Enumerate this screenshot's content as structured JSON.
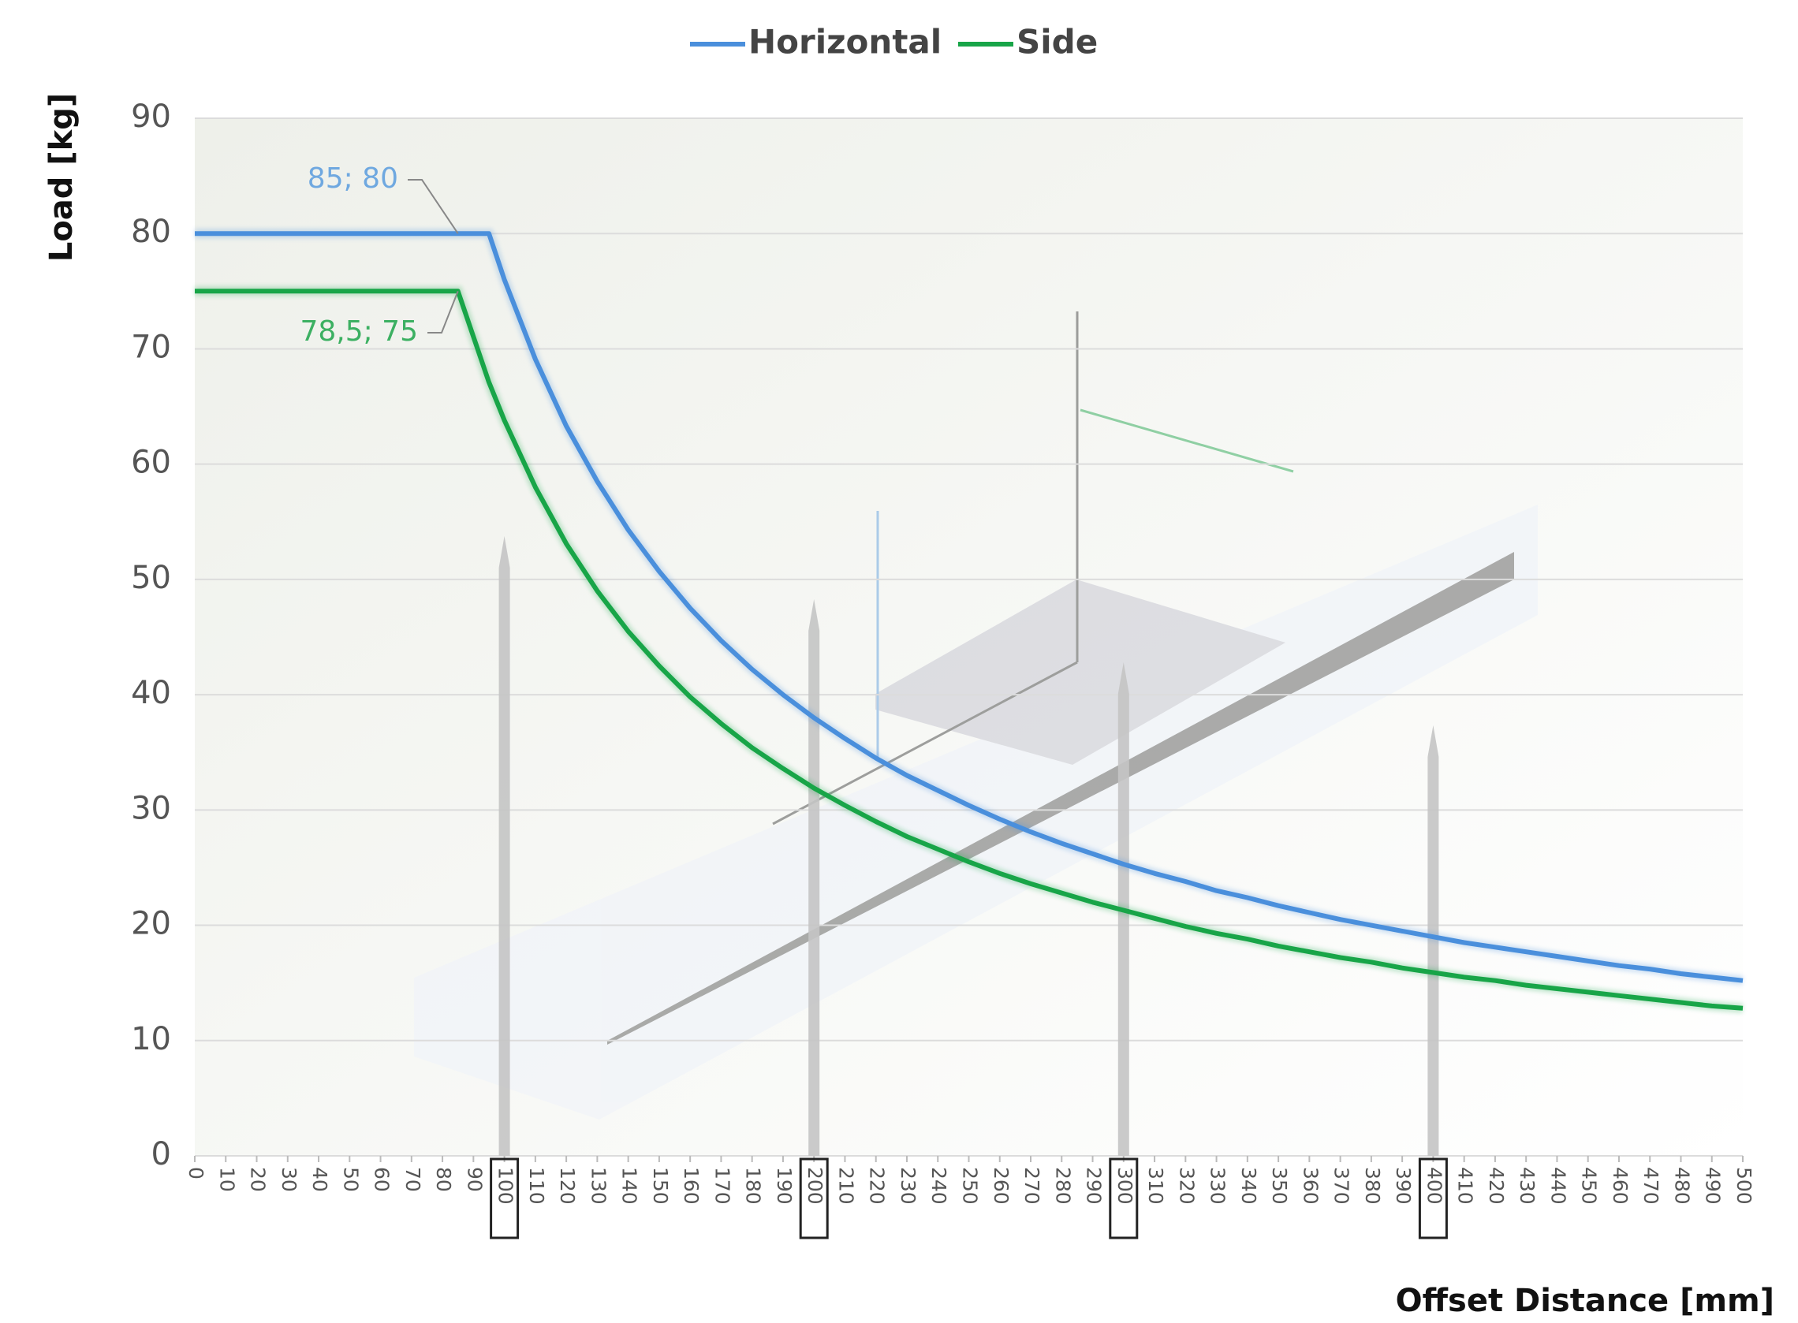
{
  "chart_data": {
    "type": "line",
    "legend": [
      "Horizontal",
      "Side"
    ],
    "y_label": "Load [kg]",
    "x_label": "Offset Distance [mm]",
    "x": [
      0,
      85,
      95,
      100,
      110,
      120,
      130,
      140,
      150,
      160,
      170,
      180,
      190,
      200,
      210,
      220,
      230,
      240,
      250,
      260,
      270,
      280,
      290,
      300,
      310,
      320,
      330,
      340,
      350,
      360,
      370,
      380,
      390,
      400,
      410,
      420,
      430,
      440,
      450,
      460,
      470,
      480,
      490,
      500
    ],
    "series": [
      {
        "name": "Horizontal",
        "color": "#4a8fdc",
        "values": [
          80,
          80,
          80,
          76,
          69.1,
          63.3,
          58.5,
          54.3,
          50.7,
          47.5,
          44.7,
          42.2,
          40,
          38,
          36.2,
          34.5,
          33,
          31.7,
          30.4,
          29.2,
          28.1,
          27.1,
          26.2,
          25.3,
          24.5,
          23.8,
          23,
          22.4,
          21.7,
          21.1,
          20.5,
          20,
          19.5,
          19,
          18.5,
          18.1,
          17.7,
          17.3,
          16.9,
          16.5,
          16.2,
          15.8,
          15.5,
          15.2
        ]
      },
      {
        "name": "Side",
        "color": "#18a548",
        "values": [
          75,
          75,
          67.1,
          63.8,
          58,
          53.1,
          49,
          45.5,
          42.5,
          39.8,
          37.5,
          35.4,
          33.6,
          31.9,
          30.4,
          29,
          27.7,
          26.6,
          25.5,
          24.5,
          23.6,
          22.8,
          22,
          21.3,
          20.6,
          19.9,
          19.3,
          18.8,
          18.2,
          17.7,
          17.2,
          16.8,
          16.3,
          15.9,
          15.5,
          15.2,
          14.8,
          14.5,
          14.2,
          13.9,
          13.6,
          13.3,
          13,
          12.8
        ]
      }
    ],
    "annotations": [
      {
        "text": "85; 80",
        "color": "#6fa8e0"
      },
      {
        "text": "78,5; 75",
        "color": "#3cb062"
      }
    ],
    "xlim": [
      0,
      500
    ],
    "ylim": [
      0,
      90
    ],
    "xticks": [
      0,
      10,
      20,
      30,
      40,
      50,
      60,
      70,
      80,
      90,
      100,
      110,
      120,
      130,
      140,
      150,
      160,
      170,
      180,
      190,
      200,
      210,
      220,
      230,
      240,
      250,
      260,
      270,
      280,
      290,
      300,
      310,
      320,
      330,
      340,
      350,
      360,
      370,
      380,
      390,
      400,
      410,
      420,
      430,
      440,
      450,
      460,
      470,
      480,
      490,
      500
    ],
    "yticks": [
      0,
      10,
      20,
      30,
      40,
      50,
      60,
      70,
      80,
      90
    ],
    "highlighted_xticks": [
      100,
      200,
      300,
      400
    ],
    "grid": true
  }
}
